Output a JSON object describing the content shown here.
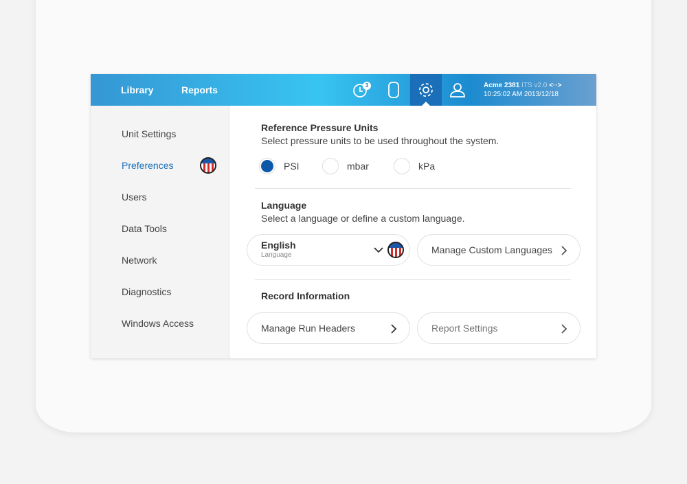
{
  "header": {
    "nav": [
      "Library",
      "Reports"
    ],
    "notification_count": "3",
    "device_name": "Acme 2381",
    "version": "ITS v2.0",
    "connection_icon": "<··>",
    "datetime": "10:25:02 AM 2013/12/18",
    "accent": "#1a6fb8"
  },
  "sidebar": {
    "items": [
      {
        "label": "Unit Settings"
      },
      {
        "label": "Preferences",
        "active": true
      },
      {
        "label": "Users"
      },
      {
        "label": "Data Tools"
      },
      {
        "label": "Network"
      },
      {
        "label": "Diagnostics"
      },
      {
        "label": "Windows Access"
      }
    ]
  },
  "pressure": {
    "title": "Reference Pressure Units",
    "desc": "Select pressure units to be used throughout the system.",
    "options": [
      "PSI",
      "mbar",
      "kPa"
    ],
    "selected": "PSI"
  },
  "language": {
    "title": "Language",
    "desc": "Select a language or define a custom language.",
    "value": "English",
    "sublabel": "Language",
    "custom": "Manage Custom Languages"
  },
  "record": {
    "title": "Record Information",
    "run_headers": "Manage Run Headers",
    "report_settings": "Report Settings"
  }
}
